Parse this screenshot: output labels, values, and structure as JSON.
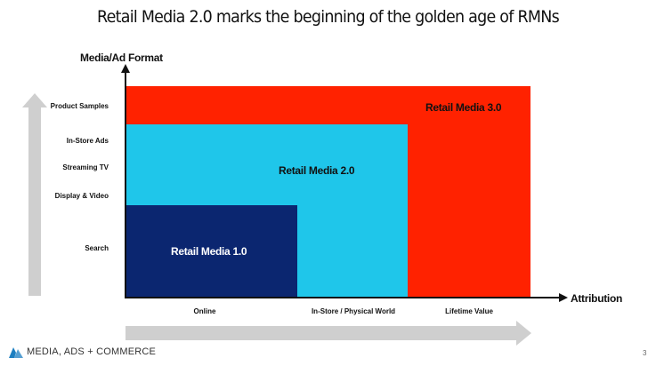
{
  "slide": {
    "title": "Retail Media 2.0 marks the beginning of the golden age of RMNs",
    "page_number": "3"
  },
  "axes": {
    "y_label": "Media/Ad Format",
    "x_label": "Attribution",
    "y_ticks": [
      "Product Samples",
      "In-Store Ads",
      "Streaming TV",
      "Display & Video",
      "Search"
    ],
    "x_ticks": [
      "Online",
      "In-Store / Physical World",
      "Lifetime Value"
    ]
  },
  "tiers": [
    {
      "label": "Retail Media 3.0",
      "color": "#ff2200",
      "text_color": "#111111"
    },
    {
      "label": "Retail Media 2.0",
      "color": "#1fc6ea",
      "text_color": "#111111"
    },
    {
      "label": "Retail Media 1.0",
      "color": "#0b2670",
      "text_color": "#ffffff"
    }
  ],
  "arrows": {
    "color": "#cfcfcf"
  },
  "brand": {
    "name": "MEDIA, ADS + COMMERCE",
    "color": "#1d7fc1"
  }
}
